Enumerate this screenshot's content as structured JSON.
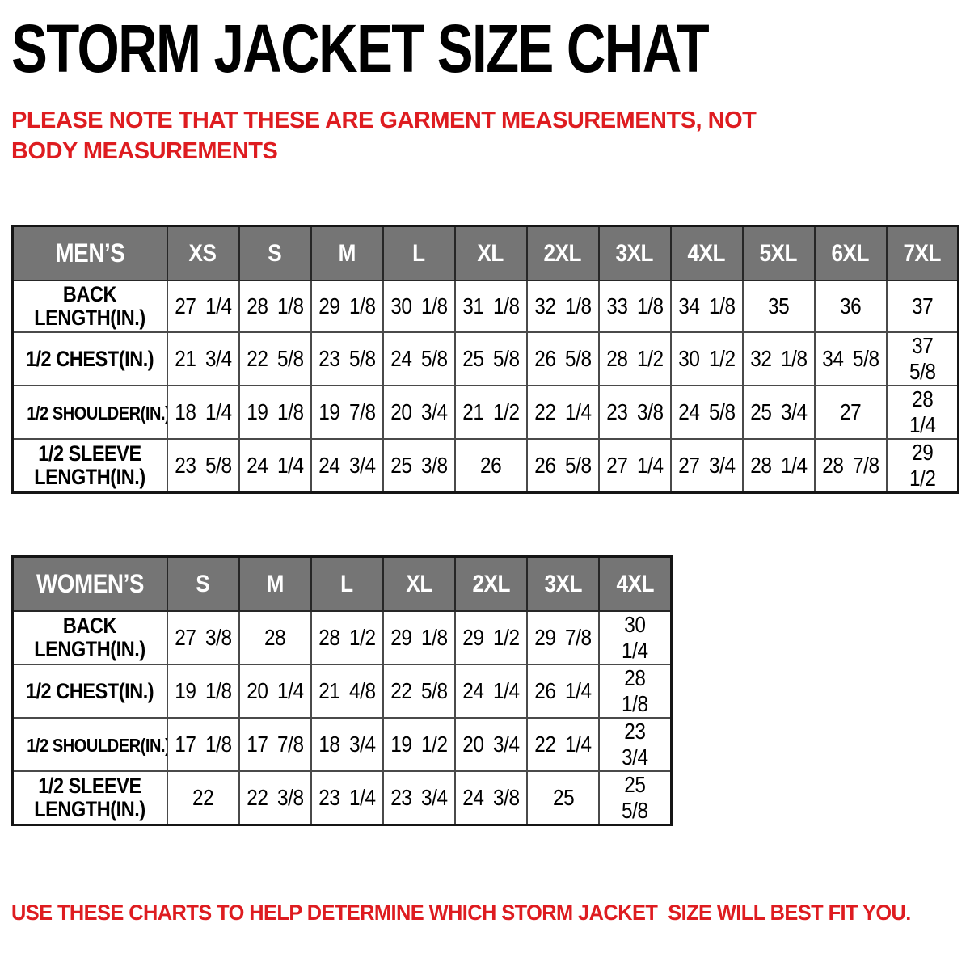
{
  "page": {
    "title": "STORM JACKET SIZE CHAT",
    "note": "PLEASE NOTE THAT THESE ARE GARMENT MEASUREMENTS, NOT BODY MEASUREMENTS",
    "footer": "USE THESE CHARTS TO HELP DETERMINE WHICH STORM JACKET  SIZE WILL BEST FIT YOU."
  },
  "colors": {
    "accent_red": "#de1c20",
    "header_bg": "#757575",
    "header_text": "#ffffff",
    "body_text": "#000000",
    "grid_line": "#4a4a4a",
    "outer_border": "#151515"
  },
  "chart_data": [
    {
      "type": "table",
      "name": "mens-size-chart",
      "header_label": "MEN’S",
      "columns": [
        "XS",
        "S",
        "M",
        "L",
        "XL",
        "2XL",
        "3XL",
        "4XL",
        "5XL",
        "6XL",
        "7XL"
      ],
      "rows": [
        {
          "label": "BACK\nLENGTH(IN.)",
          "values": [
            "27 1/4",
            "28 1/8",
            "29 1/8",
            "30 1/8",
            "31 1/8",
            "32 1/8",
            "33 1/8",
            "34 1/8",
            "35",
            "36",
            "37"
          ]
        },
        {
          "label": "1/2 CHEST(IN.)",
          "values": [
            "21 3/4",
            "22 5/8",
            "23 5/8",
            "24 5/8",
            "25 5/8",
            "26 5/8",
            "28 1/2",
            "30 1/2",
            "32 1/8",
            "34 5/8",
            "37 5/8"
          ]
        },
        {
          "label": "1/2 SHOULDER(IN.)",
          "values": [
            "18 1/4",
            "19 1/8",
            "19 7/8",
            "20 3/4",
            "21 1/2",
            "22 1/4",
            "23 3/8",
            "24 5/8",
            "25 3/4",
            "27",
            "28 1/4"
          ]
        },
        {
          "label": "1/2 SLEEVE\nLENGTH(IN.)",
          "values": [
            "23 5/8",
            "24 1/4",
            "24 3/4",
            "25 3/8",
            "26",
            "26 5/8",
            "27 1/4",
            "27 3/4",
            "28 1/4",
            "28 7/8",
            "29 1/2"
          ]
        }
      ]
    },
    {
      "type": "table",
      "name": "womens-size-chart",
      "header_label": "WOMEN’S",
      "columns": [
        "S",
        "M",
        "L",
        "XL",
        "2XL",
        "3XL",
        "4XL"
      ],
      "rows": [
        {
          "label": "BACK\nLENGTH(IN.)",
          "values": [
            "27 3/8",
            "28",
            "28 1/2",
            "29 1/8",
            "29 1/2",
            "29 7/8",
            "30 1/4"
          ]
        },
        {
          "label": "1/2 CHEST(IN.)",
          "values": [
            "19 1/8",
            "20 1/4",
            "21 4/8",
            "22 5/8",
            "24 1/4",
            "26 1/4",
            "28 1/8"
          ]
        },
        {
          "label": "1/2 SHOULDER(IN.)",
          "values": [
            "17 1/8",
            "17 7/8",
            "18 3/4",
            "19 1/2",
            "20 3/4",
            "22 1/4",
            "23 3/4"
          ]
        },
        {
          "label": "1/2 SLEEVE\nLENGTH(IN.)",
          "values": [
            "22",
            "22 3/8",
            "23 1/4",
            "23 3/4",
            "24 3/8",
            "25",
            "25 5/8"
          ]
        }
      ]
    }
  ]
}
